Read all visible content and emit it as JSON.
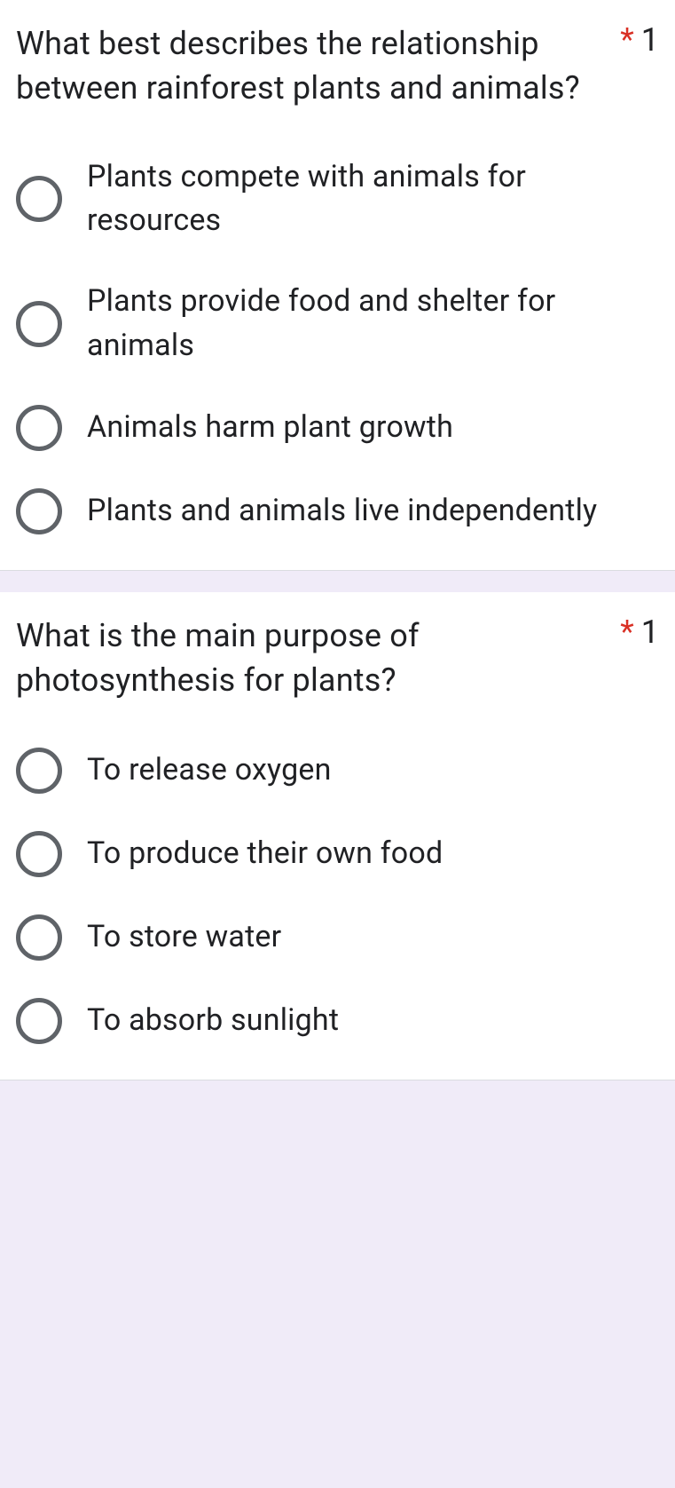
{
  "questions": [
    {
      "text": "What best describes the relationship between rainforest plants and animals?",
      "required_marker": "*",
      "points": "1",
      "options": [
        "Plants compete with animals for resources",
        "Plants provide food and shelter for animals",
        "Animals harm plant growth",
        "Plants and animals live independently"
      ]
    },
    {
      "text": "What is the main purpose of photosynthesis for plants?",
      "required_marker": "*",
      "points": "1",
      "options": [
        "To release oxygen",
        "To produce their own food",
        "To store water",
        "To absorb sunlight"
      ]
    }
  ],
  "styling": {
    "background_color": "#f0ebf8",
    "card_background": "#ffffff",
    "text_color": "#202124",
    "radio_border_color": "#5f6368",
    "required_color": "#d93025",
    "question_fontsize": 36,
    "option_fontsize": 34,
    "radio_size": 52
  }
}
